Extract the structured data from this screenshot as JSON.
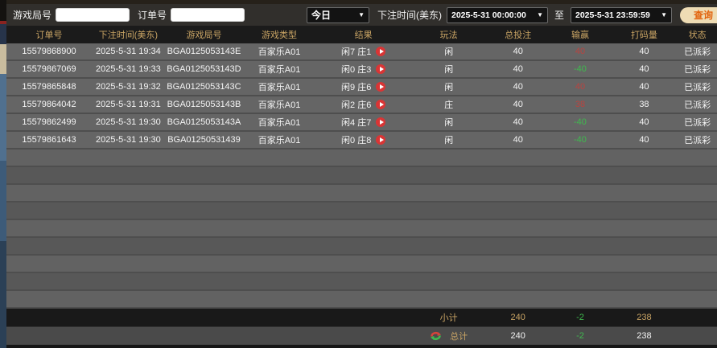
{
  "toolbar": {
    "game_round_label": "游戏局号",
    "game_round_value": "",
    "order_no_label": "订单号",
    "order_no_value": "",
    "preset_value": "今日",
    "bet_time_label": "下注时间(美东)",
    "date_from": "2025-5-31 00:00:00",
    "to_label": "至",
    "date_to": "2025-5-31 23:59:59",
    "search_label": "查询"
  },
  "table": {
    "columns": [
      "订单号",
      "下注时间(美东)",
      "游戏局号",
      "游戏类型",
      "结果",
      "玩法",
      "总投注",
      "输赢",
      "打码量",
      "状态"
    ],
    "rows": [
      {
        "order_id": "15579868900",
        "bet_time": "2025-5-31 19:34",
        "round_id": "BGA0125053143E",
        "game_type": "百家乐A01",
        "result": "闲7 庄1",
        "play": "闲",
        "total_bet": "40",
        "win_loss": "40",
        "win_color": "red",
        "turnover": "40",
        "status": "已派彩"
      },
      {
        "order_id": "15579867069",
        "bet_time": "2025-5-31 19:33",
        "round_id": "BGA0125053143D",
        "game_type": "百家乐A01",
        "result": "闲0 庄3",
        "play": "闲",
        "total_bet": "40",
        "win_loss": "-40",
        "win_color": "green",
        "turnover": "40",
        "status": "已派彩"
      },
      {
        "order_id": "15579865848",
        "bet_time": "2025-5-31 19:32",
        "round_id": "BGA0125053143C",
        "game_type": "百家乐A01",
        "result": "闲9 庄6",
        "play": "闲",
        "total_bet": "40",
        "win_loss": "40",
        "win_color": "red",
        "turnover": "40",
        "status": "已派彩"
      },
      {
        "order_id": "15579864042",
        "bet_time": "2025-5-31 19:31",
        "round_id": "BGA0125053143B",
        "game_type": "百家乐A01",
        "result": "闲2 庄6",
        "play": "庄",
        "total_bet": "40",
        "win_loss": "38",
        "win_color": "red",
        "turnover": "38",
        "status": "已派彩"
      },
      {
        "order_id": "15579862499",
        "bet_time": "2025-5-31 19:30",
        "round_id": "BGA0125053143A",
        "game_type": "百家乐A01",
        "result": "闲4 庄7",
        "play": "闲",
        "total_bet": "40",
        "win_loss": "-40",
        "win_color": "green",
        "turnover": "40",
        "status": "已派彩"
      },
      {
        "order_id": "15579861643",
        "bet_time": "2025-5-31 19:30",
        "round_id": "BGA01250531439",
        "game_type": "百家乐A01",
        "result": "闲0 庄8",
        "play": "闲",
        "total_bet": "40",
        "win_loss": "-40",
        "win_color": "green",
        "turnover": "40",
        "status": "已派彩"
      }
    ],
    "subtotal": {
      "label": "小计",
      "total_bet": "240",
      "win_loss": "-2",
      "turnover": "238"
    },
    "total": {
      "label": "总计",
      "total_bet": "240",
      "win_loss": "-2",
      "turnover": "238"
    }
  },
  "icons": {
    "result_play": "play-icon",
    "total_refresh": "refresh-icon",
    "dropdown_chevron": "chevron-down-icon"
  },
  "colors": {
    "header_gold": "#c9a464",
    "win_red": "#b94440",
    "loss_green": "#3fba4e",
    "search_button_bg": "#eedcb4",
    "search_button_text": "#e2620c"
  }
}
